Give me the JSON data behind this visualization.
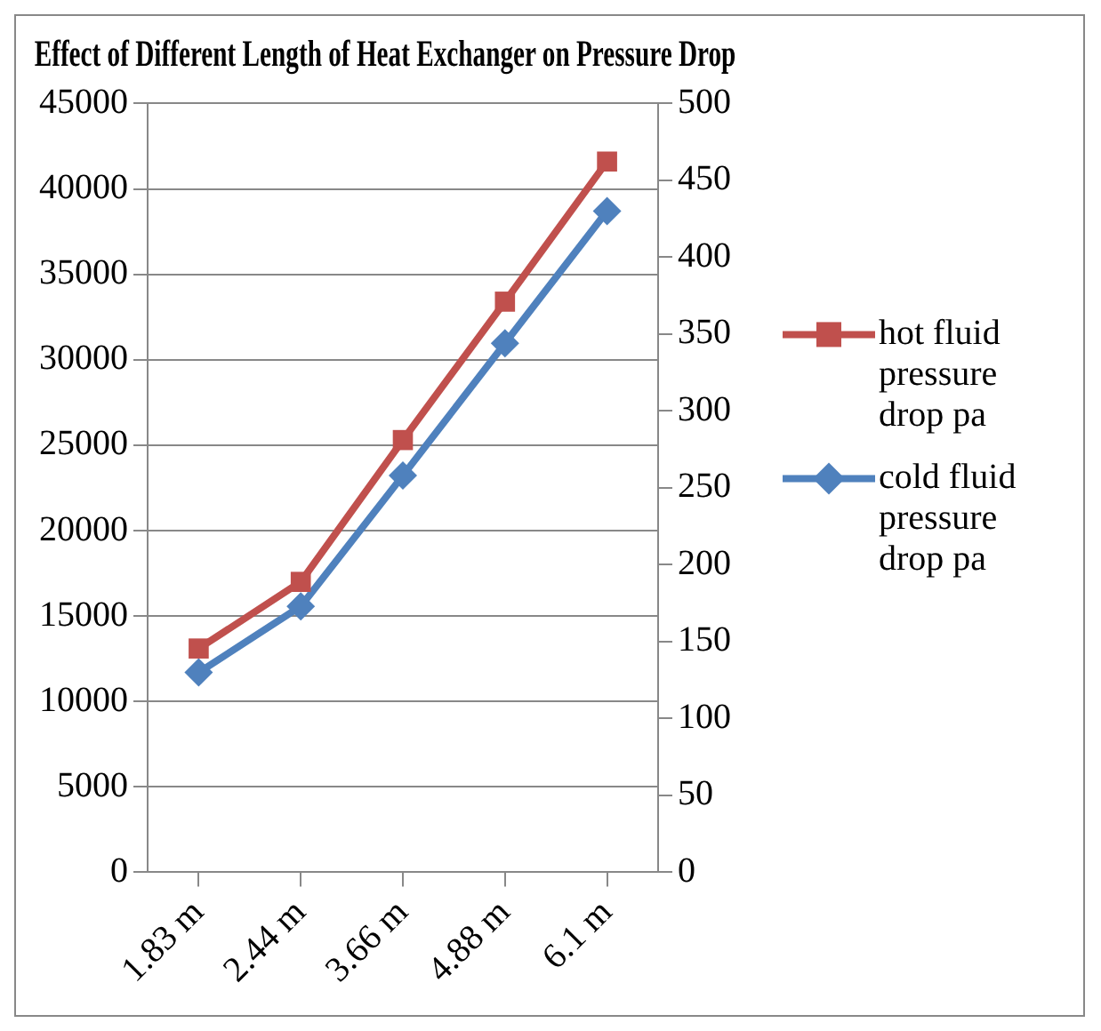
{
  "chart_data": {
    "type": "line",
    "title": "Effect of Different Length of Heat Exchanger on Pressure Drop",
    "categories": [
      "1.83 m",
      "2.44 m",
      "3.66 m",
      "4.88 m",
      "6.1 m"
    ],
    "series": [
      {
        "name": "hot fluid pressure drop pa",
        "color": "#c0504d",
        "marker": "square",
        "values": [
          13100,
          17000,
          25300,
          33400,
          41600
        ]
      },
      {
        "name": "cold fluid pressure drop pa",
        "color": "#4f81bd",
        "marker": "diamond",
        "axis": "y2",
        "values": [
          130,
          173,
          258,
          344,
          430
        ]
      }
    ],
    "ylim": [
      0,
      45000
    ],
    "yticks": [
      0,
      5000,
      10000,
      15000,
      20000,
      25000,
      30000,
      35000,
      40000,
      45000
    ],
    "y2lim": [
      0,
      500
    ],
    "y2ticks": [
      0,
      50,
      100,
      150,
      200,
      250,
      300,
      350,
      400,
      450,
      500
    ],
    "grid": "y",
    "legend": "right"
  }
}
